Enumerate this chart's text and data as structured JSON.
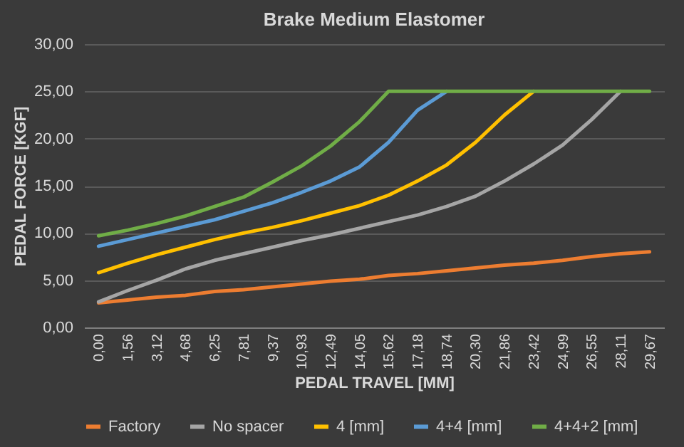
{
  "chart_data": {
    "type": "line",
    "title": "Brake Medium Elastomer",
    "xlabel": "PEDAL TRAVEL [MM]",
    "ylabel": "PEDAL FORCE [KGF]",
    "categories": [
      "0,00",
      "1,56",
      "3,12",
      "4,68",
      "6,25",
      "7,81",
      "9,37",
      "10,93",
      "12,49",
      "14,05",
      "15,62",
      "17,18",
      "18,74",
      "20,30",
      "21,86",
      "23,42",
      "24,99",
      "26,55",
      "28,11",
      "29,67"
    ],
    "series": [
      {
        "name": "Factory",
        "color": "#ed7d31",
        "values": [
          2.6,
          2.9,
          3.2,
          3.4,
          3.8,
          4.0,
          4.3,
          4.6,
          4.9,
          5.1,
          5.5,
          5.7,
          6.0,
          6.3,
          6.6,
          6.8,
          7.1,
          7.5,
          7.8,
          8.0
        ]
      },
      {
        "name": "No spacer",
        "color": "#a5a5a5",
        "values": [
          2.7,
          3.9,
          5.0,
          6.2,
          7.1,
          7.8,
          8.5,
          9.2,
          9.8,
          10.5,
          11.2,
          11.9,
          12.8,
          13.9,
          15.5,
          17.3,
          19.3,
          22.0,
          25.0,
          null
        ]
      },
      {
        "name": "4 [mm]",
        "color": "#ffc000",
        "values": [
          5.8,
          6.8,
          7.7,
          8.5,
          9.3,
          10.0,
          10.6,
          11.3,
          12.1,
          12.9,
          14.0,
          15.5,
          17.2,
          19.6,
          22.5,
          25.0,
          null,
          null,
          null,
          null
        ]
      },
      {
        "name": "4+4 [mm]",
        "color": "#5b9bd5",
        "values": [
          8.6,
          9.3,
          10.0,
          10.7,
          11.4,
          12.3,
          13.2,
          14.3,
          15.5,
          17.0,
          19.6,
          23.0,
          25.0,
          null,
          null,
          null,
          null,
          null,
          null,
          null
        ]
      },
      {
        "name": "4+4+2 [mm]",
        "color": "#70ad47",
        "values": [
          9.7,
          10.3,
          11.0,
          11.8,
          12.8,
          13.8,
          15.4,
          17.1,
          19.2,
          21.8,
          25.0,
          25.0,
          25.0,
          25.0,
          25.0,
          25.0,
          25.0,
          25.0,
          25.0,
          25.0
        ]
      }
    ],
    "ylim": [
      0,
      30
    ],
    "yticks": [
      {
        "value": 0,
        "label": "0,00"
      },
      {
        "value": 5,
        "label": "5,00"
      },
      {
        "value": 10,
        "label": "10,00"
      },
      {
        "value": 15,
        "label": "15,00"
      },
      {
        "value": 20,
        "label": "20,00"
      },
      {
        "value": 25,
        "label": "25,00"
      },
      {
        "value": 30,
        "label": "30,00"
      }
    ],
    "grid": "y",
    "legend": "bottom",
    "line_style": "solid",
    "marker": "none"
  }
}
